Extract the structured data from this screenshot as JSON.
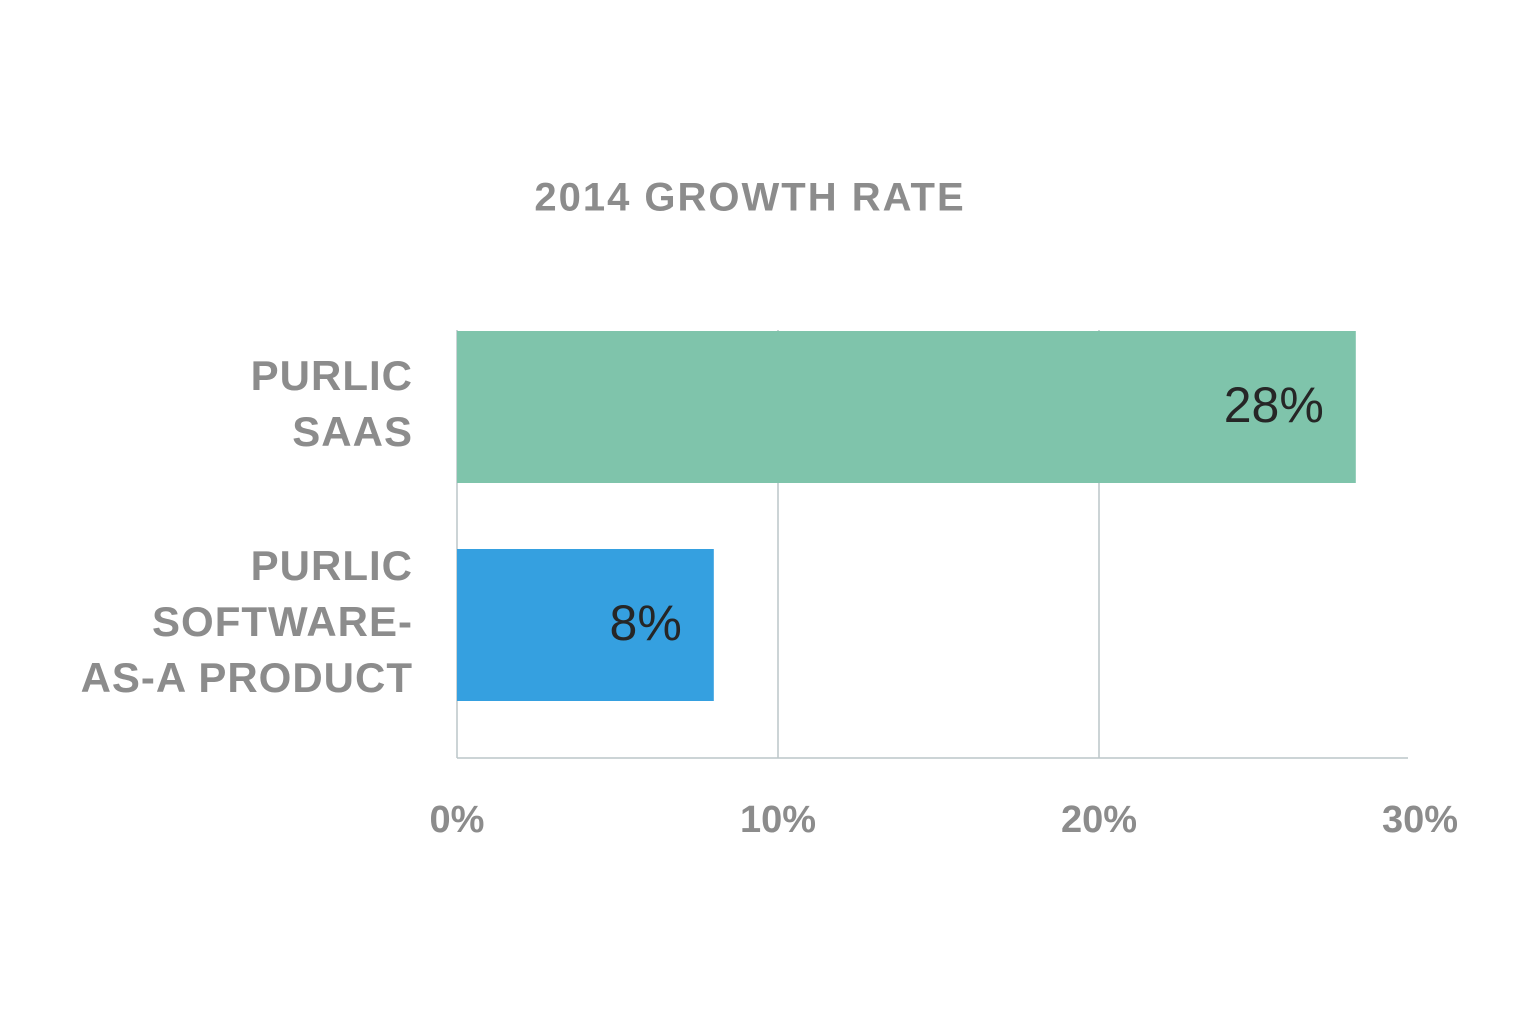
{
  "chart_data": {
    "type": "bar",
    "orientation": "horizontal",
    "title": "2014 GROWTH RATE",
    "categories": [
      [
        "PURLIC",
        "SAAS"
      ],
      [
        "PURLIC",
        "SOFTWARE-",
        "AS-A PRODUCT"
      ]
    ],
    "values": [
      28,
      8
    ],
    "value_labels": [
      "28%",
      "8%"
    ],
    "colors": [
      "#7fc4ab",
      "#35a0e0"
    ],
    "xlim": [
      0,
      30
    ],
    "xticks": [
      {
        "value": 0,
        "label": "0%"
      },
      {
        "value": 10,
        "label": "10%"
      },
      {
        "value": 20,
        "label": "20%"
      },
      {
        "value": 30,
        "label": "30%"
      }
    ],
    "grid": true
  }
}
